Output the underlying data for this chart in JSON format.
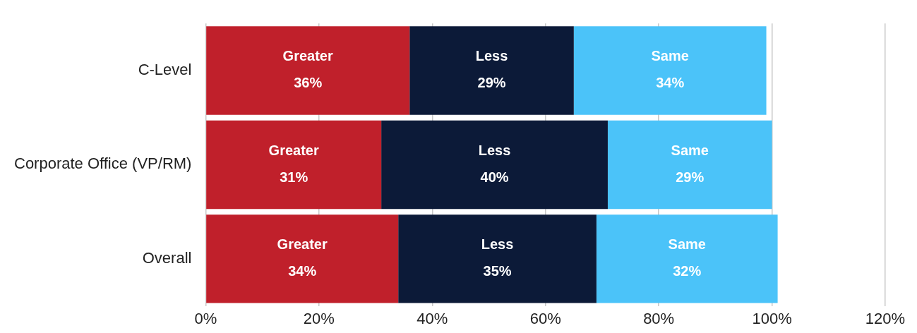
{
  "chart_data": {
    "type": "bar",
    "orientation": "horizontal",
    "stacked": true,
    "categories": [
      "C-Level",
      "Corporate Office (VP/RM)",
      "Overall"
    ],
    "series": [
      {
        "name": "Greater",
        "color": "#c0202b",
        "values": [
          36,
          31,
          34
        ],
        "value_labels": [
          "36%",
          "31%",
          "34%"
        ]
      },
      {
        "name": "Less",
        "color": "#0c1a38",
        "values": [
          29,
          40,
          35
        ],
        "value_labels": [
          "29%",
          "40%",
          "35%"
        ]
      },
      {
        "name": "Same",
        "color": "#4bc3f9",
        "values": [
          34,
          29,
          32
        ],
        "value_labels": [
          "34%",
          "29%",
          "32%"
        ]
      }
    ],
    "xlim": [
      0,
      120
    ],
    "xticks": [
      {
        "value": 0,
        "label": "0%"
      },
      {
        "value": 20,
        "label": "20%"
      },
      {
        "value": 40,
        "label": "40%"
      },
      {
        "value": 60,
        "label": "60%"
      },
      {
        "value": 80,
        "label": "80%"
      },
      {
        "value": 100,
        "label": "100%"
      },
      {
        "value": 120,
        "label": "120%"
      }
    ],
    "grid": "x",
    "legend": false
  }
}
